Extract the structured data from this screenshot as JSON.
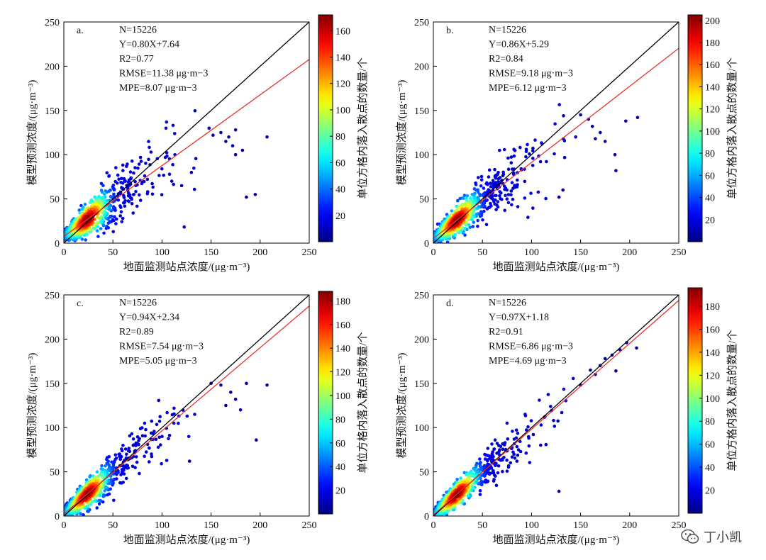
{
  "chart_data": [
    {
      "type": "scatter",
      "panel": "a.",
      "stats": {
        "n": "N=15226",
        "fit": "Y=0.80X+7.64",
        "r2": "R2=0.77",
        "rmse": "RMSE=11.38 μg·m−3",
        "mpe": "MPE=8.07 μg·m−3"
      },
      "fit": {
        "slope": 0.8,
        "intercept": 7.64
      },
      "xlabel": "地面监测站点浓度/(μg·m⁻³)",
      "ylabel": "模型预测浓度/(μg·m⁻³)",
      "xlim": [
        0,
        250
      ],
      "ylim": [
        0,
        250
      ],
      "xticks": [
        0,
        50,
        100,
        150,
        200,
        250
      ],
      "yticks": [
        0,
        50,
        100,
        150,
        200,
        250
      ],
      "colorbar": {
        "label": "单位方格内落入散点的数量/个",
        "ticks": [
          20,
          40,
          60,
          80,
          100,
          120,
          140,
          160
        ],
        "max": 172
      },
      "spread": 0.22,
      "outliers": [
        [
          148,
          130
        ],
        [
          152,
          122
        ],
        [
          160,
          125
        ],
        [
          168,
          120
        ],
        [
          172,
          110
        ],
        [
          175,
          128
        ],
        [
          182,
          105
        ],
        [
          186,
          52
        ],
        [
          195,
          55
        ],
        [
          207,
          120
        ],
        [
          175,
          100
        ],
        [
          165,
          115
        ],
        [
          120,
          65
        ],
        [
          110,
          70
        ],
        [
          130,
          80
        ]
      ]
    },
    {
      "type": "scatter",
      "panel": "b.",
      "stats": {
        "n": "N=15226",
        "fit": "Y=0.86X+5.29",
        "r2": "R2=0.84",
        "rmse": "RMSE=9.18 μg·m−3",
        "mpe": "MPE=6.12 μg·m−3"
      },
      "fit": {
        "slope": 0.86,
        "intercept": 5.29
      },
      "xlabel": "地面监测站点浓度/(μg·m⁻³)",
      "ylabel": "模型预测浓度/(μg·m⁻³)",
      "xlim": [
        0,
        250
      ],
      "ylim": [
        0,
        250
      ],
      "xticks": [
        0,
        50,
        100,
        150,
        200,
        250
      ],
      "yticks": [
        0,
        50,
        100,
        150,
        200,
        250
      ],
      "colorbar": {
        "label": "单位方格内落入散点的数量/个",
        "ticks": [
          20,
          40,
          60,
          80,
          100,
          120,
          140,
          160,
          180,
          200
        ],
        "max": 205
      },
      "spread": 0.18,
      "outliers": [
        [
          150,
          145
        ],
        [
          158,
          140
        ],
        [
          162,
          132
        ],
        [
          170,
          125
        ],
        [
          175,
          115
        ],
        [
          185,
          100
        ],
        [
          186,
          82
        ],
        [
          196,
          138
        ],
        [
          208,
          142
        ],
        [
          165,
          118
        ],
        [
          128,
          52
        ],
        [
          132,
          60
        ],
        [
          145,
          120
        ]
      ]
    },
    {
      "type": "scatter",
      "panel": "c.",
      "stats": {
        "n": "N=15226",
        "fit": "Y=0.94X+2.34",
        "r2": "R2=0.89",
        "rmse": "RMSE=7.54 μg·m−3",
        "mpe": "MPE=5.05 μg·m−3"
      },
      "fit": {
        "slope": 0.94,
        "intercept": 2.34
      },
      "xlabel": "地面监测站点浓度/(μg·m⁻³)",
      "ylabel": "模型预测浓度/(μg·m⁻³)",
      "xlim": [
        0,
        250
      ],
      "ylim": [
        0,
        250
      ],
      "xticks": [
        0,
        50,
        100,
        150,
        200,
        250
      ],
      "yticks": [
        0,
        50,
        100,
        150,
        200,
        250
      ],
      "colorbar": {
        "label": "单位方格内落入散点的数量/个",
        "ticks": [
          20,
          40,
          60,
          80,
          100,
          120,
          140,
          160,
          180
        ],
        "max": 188
      },
      "spread": 0.15,
      "outliers": [
        [
          150,
          150
        ],
        [
          160,
          148
        ],
        [
          170,
          140
        ],
        [
          175,
          132
        ],
        [
          186,
          150
        ],
        [
          196,
          86
        ],
        [
          207,
          148
        ],
        [
          128,
          62
        ],
        [
          165,
          125
        ],
        [
          180,
          120
        ]
      ]
    },
    {
      "type": "scatter",
      "panel": "d.",
      "stats": {
        "n": "N=15226",
        "fit": "Y=0.97X+1.18",
        "r2": "R2=0.91",
        "rmse": "RMSE=6.86 μg·m−3",
        "mpe": "MPE=4.69 μg·m−3"
      },
      "fit": {
        "slope": 0.97,
        "intercept": 1.18
      },
      "xlabel": "地面监测站点浓度/(μg·m⁻³)",
      "ylabel": "模型预测浓度/(μg·m⁻³)",
      "xlim": [
        0,
        250
      ],
      "ylim": [
        0,
        250
      ],
      "xticks": [
        0,
        50,
        100,
        150,
        200,
        250
      ],
      "yticks": [
        0,
        50,
        100,
        150,
        200,
        250
      ],
      "colorbar": {
        "label": "单位方格内落入散点的数量/个",
        "ticks": [
          20,
          40,
          60,
          80,
          100,
          120,
          140,
          160,
          180
        ],
        "max": 196
      },
      "spread": 0.13,
      "outliers": [
        [
          160,
          165
        ],
        [
          170,
          170
        ],
        [
          175,
          178
        ],
        [
          182,
          182
        ],
        [
          186,
          164
        ],
        [
          190,
          188
        ],
        [
          197,
          196
        ],
        [
          207,
          190
        ],
        [
          128,
          28
        ],
        [
          150,
          148
        ],
        [
          165,
          160
        ]
      ]
    }
  ],
  "watermark": {
    "text": "丁小凯",
    "icon": "wechat-icon"
  }
}
